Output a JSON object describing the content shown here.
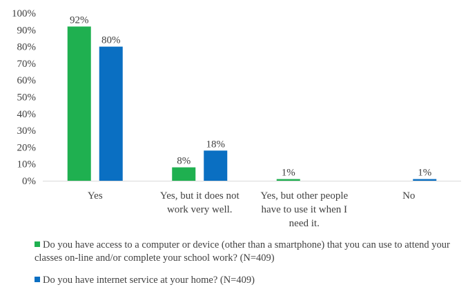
{
  "chart_data": {
    "type": "bar",
    "categories": [
      "Yes",
      "Yes, but it does not work very well.",
      "Yes, but other people have to use it when I need it.",
      "No"
    ],
    "category_lines": [
      [
        "Yes"
      ],
      [
        "Yes, but it does not",
        "work very well."
      ],
      [
        "Yes, but other people",
        "have to use it when I",
        "need it."
      ],
      [
        "No"
      ]
    ],
    "series": [
      {
        "name": "Do you have access to a computer or device (other than a smartphone) that you can use to attend your classes on-line and/or complete your school work? (N=409)",
        "color": "#1fb050",
        "values": [
          92,
          8,
          1,
          null
        ],
        "labels": [
          "92%",
          "8%",
          "1%",
          ""
        ]
      },
      {
        "name": "Do you have internet service at your home? (N=409)",
        "color": "#0a6fc2",
        "values": [
          80,
          18,
          null,
          1
        ],
        "labels": [
          "80%",
          "18%",
          "",
          "1%"
        ]
      }
    ],
    "y_ticks": [
      "0%",
      "10%",
      "20%",
      "30%",
      "40%",
      "50%",
      "60%",
      "70%",
      "80%",
      "90%",
      "100%"
    ],
    "ylim": [
      0,
      100
    ],
    "grid": false,
    "legend_position": "bottom",
    "title": "",
    "xlabel": "",
    "ylabel": ""
  }
}
